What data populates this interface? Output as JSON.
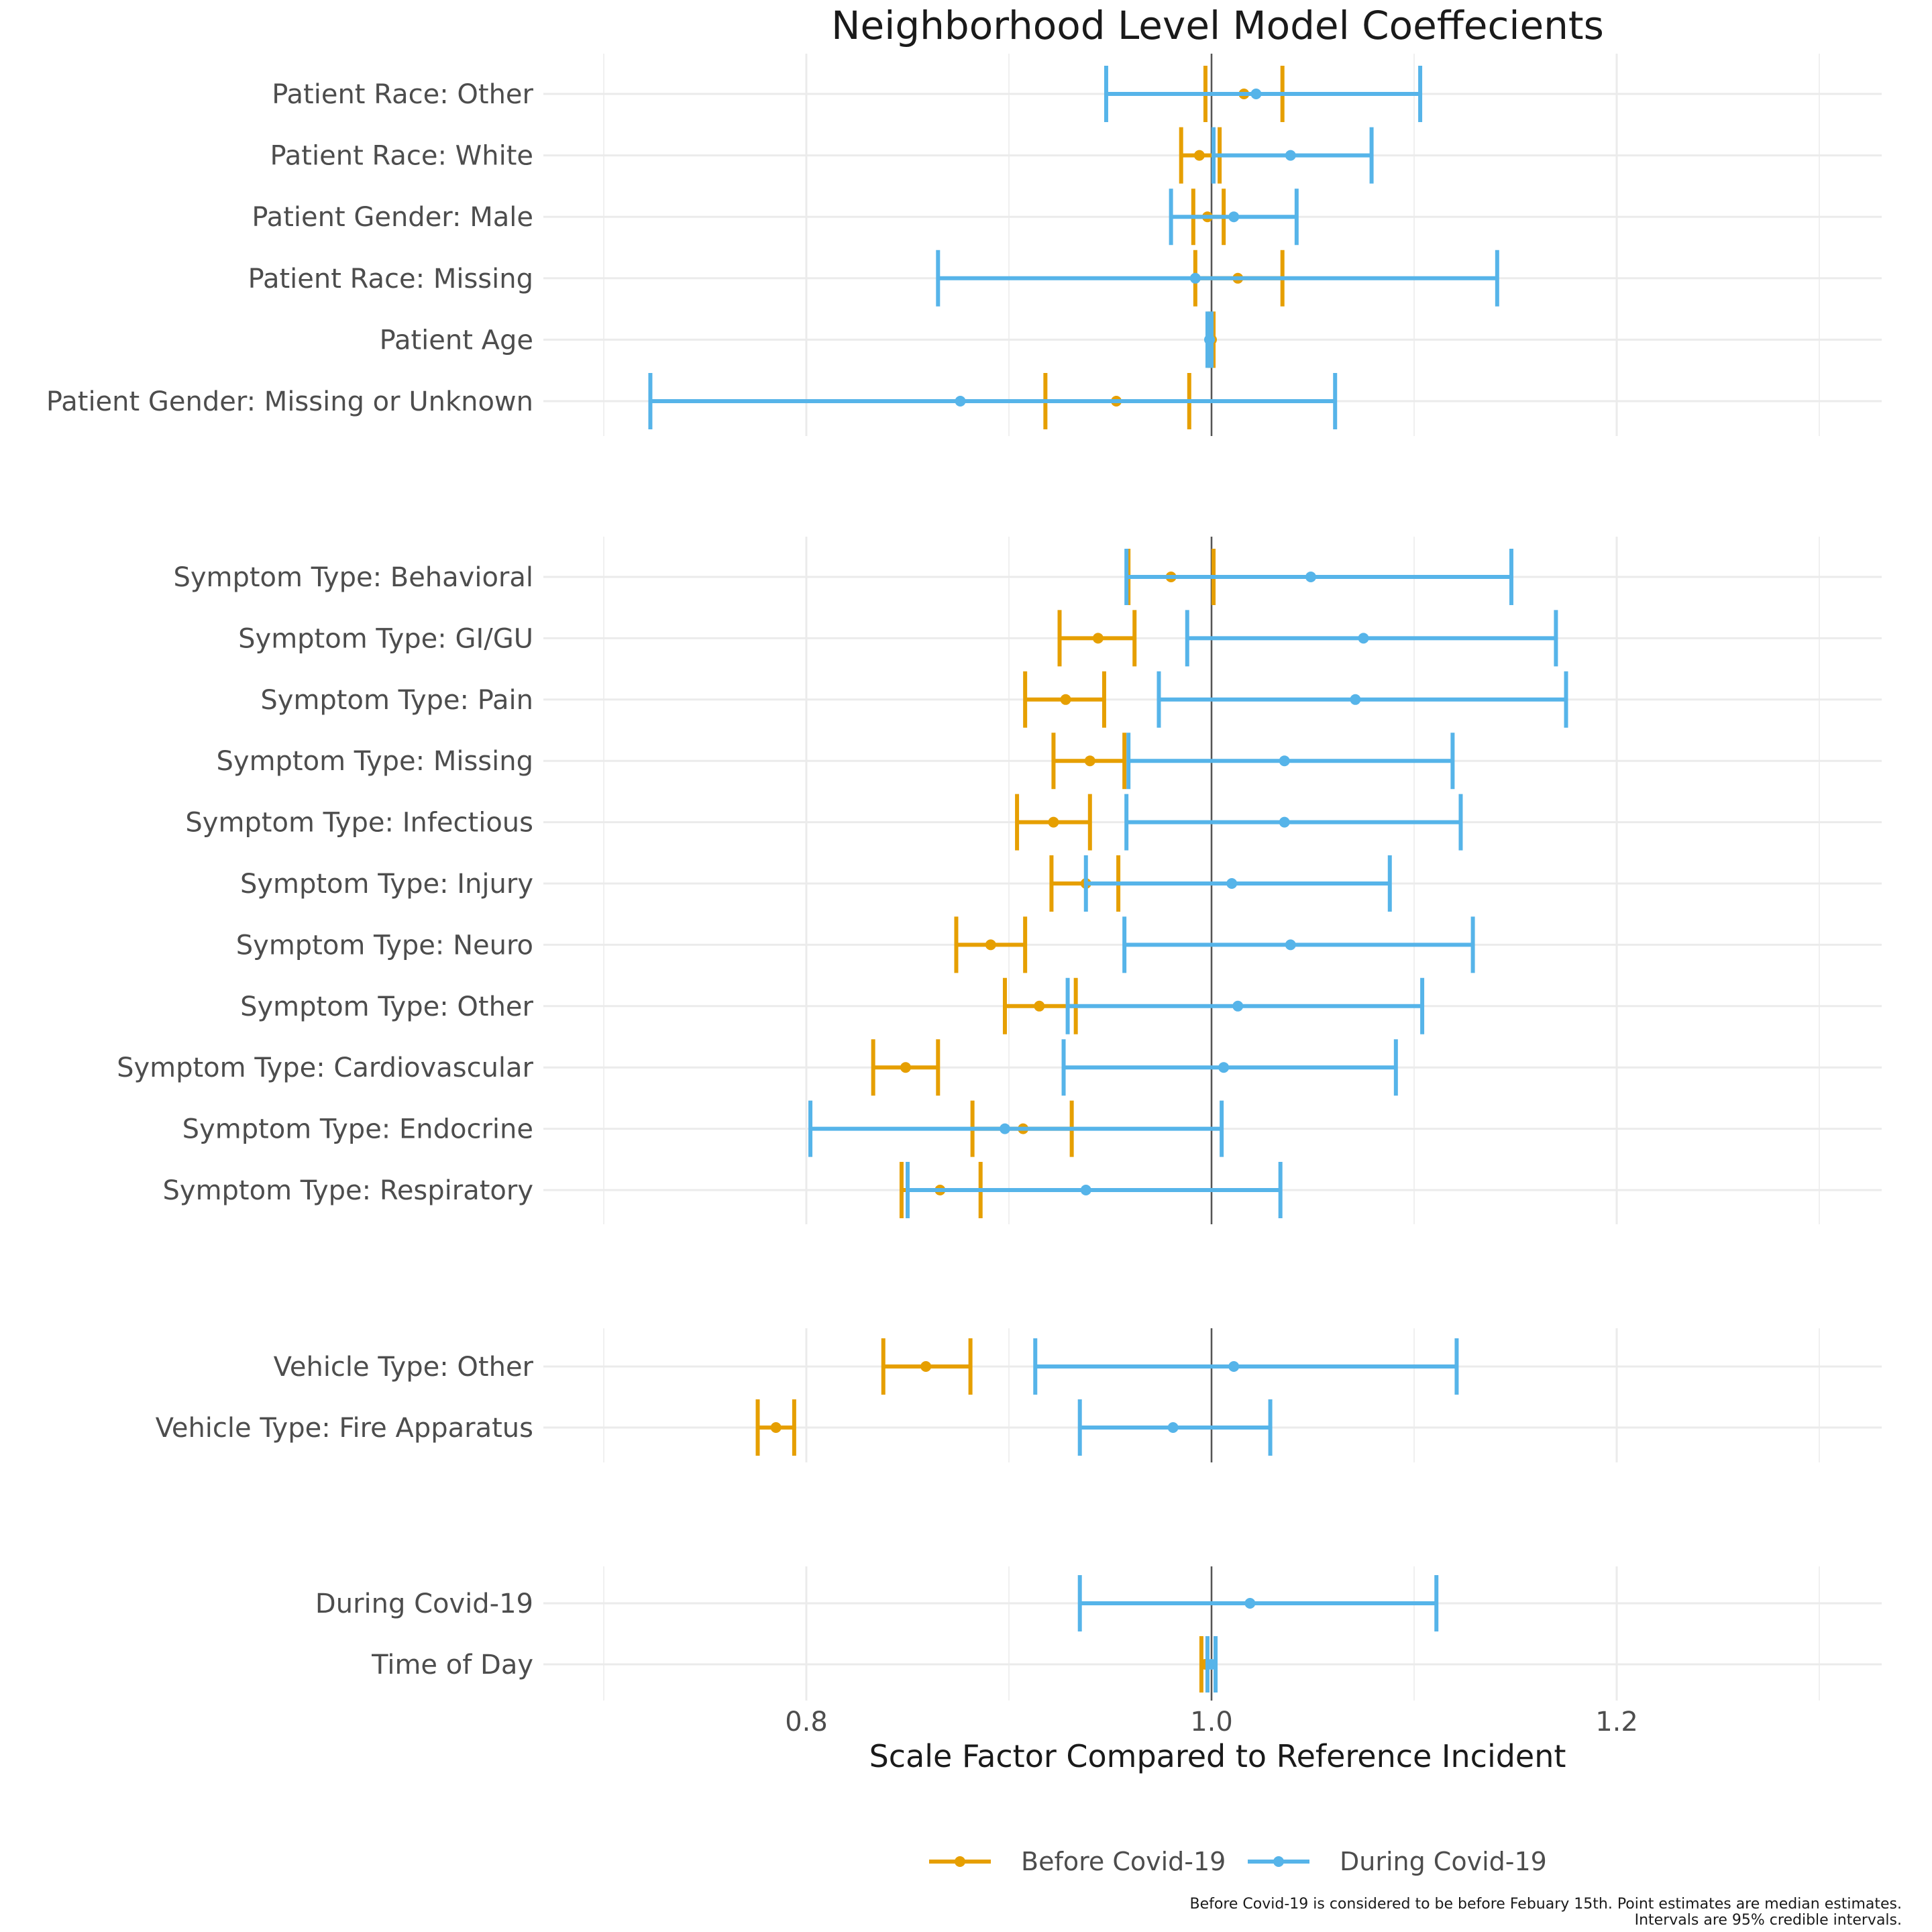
{
  "chart_data": {
    "type": "interval",
    "title": "Neighborhood Level Model Coeffecients",
    "xlabel": "Scale Factor Compared to Reference Incident",
    "xlim": [
      0.67,
      1.33
    ],
    "x_ticks": [
      0.8,
      1.0,
      1.2
    ],
    "x_tick_labels": [
      "0.8",
      "1.0",
      "1.2"
    ],
    "reference_line": 1.0,
    "grid": true,
    "legend_position": "bottom",
    "caption_lines": [
      "Before Covid-19 is considered to be before Febuary 15th. Point estimates are median estimates.",
      "Intervals are 95% credible intervals."
    ],
    "series": [
      {
        "name": "Before Covid-19",
        "color": "#E69F00"
      },
      {
        "name": "During Covid-19",
        "color": "#56B4E9"
      }
    ],
    "panels": [
      {
        "rows": [
          {
            "label": "Patient Race: Other",
            "before": [
              0.997,
              1.016,
              1.035
            ],
            "during": [
              0.948,
              1.022,
              1.103
            ]
          },
          {
            "label": "Patient Race: White",
            "before": [
              0.985,
              0.994,
              1.004
            ],
            "during": [
              1.001,
              1.039,
              1.079
            ]
          },
          {
            "label": "Patient Gender: Male",
            "before": [
              0.991,
              0.998,
              1.006
            ],
            "during": [
              0.98,
              1.011,
              1.042
            ]
          },
          {
            "label": "Patient Race: Missing",
            "before": [
              0.992,
              1.013,
              1.035
            ],
            "during": [
              0.865,
              0.992,
              1.141
            ]
          },
          {
            "label": "Patient Age",
            "before": [
              0.999,
              1.0,
              1.001
            ],
            "during": [
              0.998,
              0.999,
              1.0
            ]
          },
          {
            "label": "Patient Gender: Missing or Unknown",
            "before": [
              0.918,
              0.953,
              0.989
            ],
            "during": [
              0.723,
              0.876,
              1.061
            ]
          }
        ]
      },
      {
        "rows": [
          {
            "label": "Symptom Type: Behavioral",
            "before": [
              0.959,
              0.98,
              1.001
            ],
            "during": [
              0.958,
              1.049,
              1.148
            ]
          },
          {
            "label": "Symptom Type: GI/GU",
            "before": [
              0.925,
              0.944,
              0.962
            ],
            "during": [
              0.988,
              1.075,
              1.17
            ]
          },
          {
            "label": "Symptom Type: Pain",
            "before": [
              0.908,
              0.928,
              0.947
            ],
            "during": [
              0.974,
              1.071,
              1.175
            ]
          },
          {
            "label": "Symptom Type: Missing",
            "before": [
              0.922,
              0.94,
              0.957
            ],
            "during": [
              0.959,
              1.036,
              1.119
            ]
          },
          {
            "label": "Symptom Type: Infectious",
            "before": [
              0.904,
              0.922,
              0.94
            ],
            "during": [
              0.958,
              1.036,
              1.123
            ]
          },
          {
            "label": "Symptom Type: Injury",
            "before": [
              0.921,
              0.938,
              0.954
            ],
            "during": [
              0.938,
              1.01,
              1.088
            ]
          },
          {
            "label": "Symptom Type: Neuro",
            "before": [
              0.874,
              0.891,
              0.908
            ],
            "during": [
              0.957,
              1.039,
              1.129
            ]
          },
          {
            "label": "Symptom Type: Other",
            "before": [
              0.898,
              0.915,
              0.933
            ],
            "during": [
              0.929,
              1.013,
              1.104
            ]
          },
          {
            "label": "Symptom Type: Cardiovascular",
            "before": [
              0.833,
              0.849,
              0.865
            ],
            "during": [
              0.927,
              1.006,
              1.091
            ]
          },
          {
            "label": "Symptom Type: Endocrine",
            "before": [
              0.882,
              0.907,
              0.931
            ],
            "during": [
              0.802,
              0.898,
              1.005
            ]
          },
          {
            "label": "Symptom Type: Respiratory",
            "before": [
              0.847,
              0.866,
              0.886
            ],
            "during": [
              0.85,
              0.938,
              1.034
            ]
          }
        ]
      },
      {
        "rows": [
          {
            "label": "Vehicle Type: Other",
            "before": [
              0.838,
              0.859,
              0.881
            ],
            "during": [
              0.913,
              1.011,
              1.121
            ]
          },
          {
            "label": "Vehicle Type: Fire Apparatus",
            "before": [
              0.776,
              0.785,
              0.794
            ],
            "during": [
              0.935,
              0.981,
              1.029
            ]
          }
        ]
      },
      {
        "rows": [
          {
            "label": "During Covid-19",
            "before": null,
            "during": [
              0.935,
              1.019,
              1.111
            ]
          },
          {
            "label": "Time of Day",
            "before": [
              0.995,
              0.997,
              0.998
            ],
            "during": [
              0.998,
              1.0,
              1.002
            ]
          }
        ]
      }
    ]
  }
}
